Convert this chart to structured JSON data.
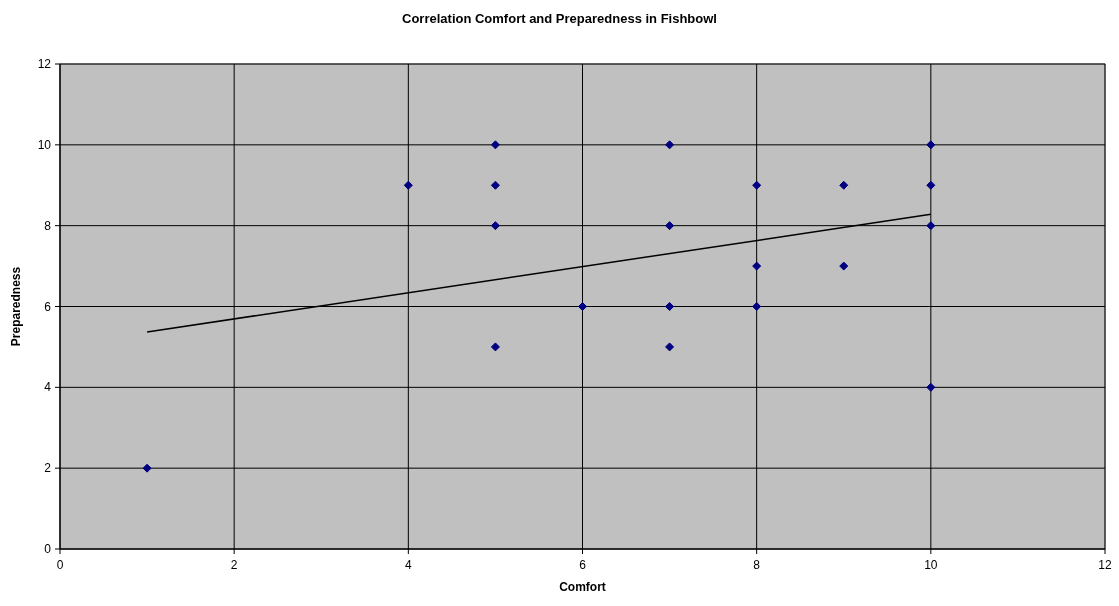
{
  "chart_data": {
    "type": "scatter",
    "title": "Correlation Comfort and Preparedness in Fishbowl",
    "xlabel": "Comfort",
    "ylabel": "Preparedness",
    "xlim": [
      0,
      12
    ],
    "xticks": [
      0,
      2,
      4,
      6,
      8,
      10,
      12
    ],
    "ylim": [
      0,
      12
    ],
    "yticks": [
      0,
      2,
      4,
      6,
      8,
      10,
      12
    ],
    "grid": true,
    "marker": "diamond",
    "series": [
      {
        "color": "#000080",
        "x": [
          1,
          4,
          5,
          5,
          5,
          5,
          6,
          7,
          7,
          7,
          7,
          8,
          8,
          8,
          9,
          9,
          10,
          10,
          10,
          10
        ],
        "values": [
          2,
          9,
          10,
          9,
          8,
          5,
          6,
          10,
          8,
          6,
          5,
          9,
          7,
          6,
          9,
          7,
          10,
          9,
          8,
          4
        ]
      },
      {
        "type": "line",
        "color": "#000000",
        "marker": "none",
        "x": [
          1,
          10
        ],
        "values": [
          5.37,
          8.28
        ]
      }
    ]
  }
}
